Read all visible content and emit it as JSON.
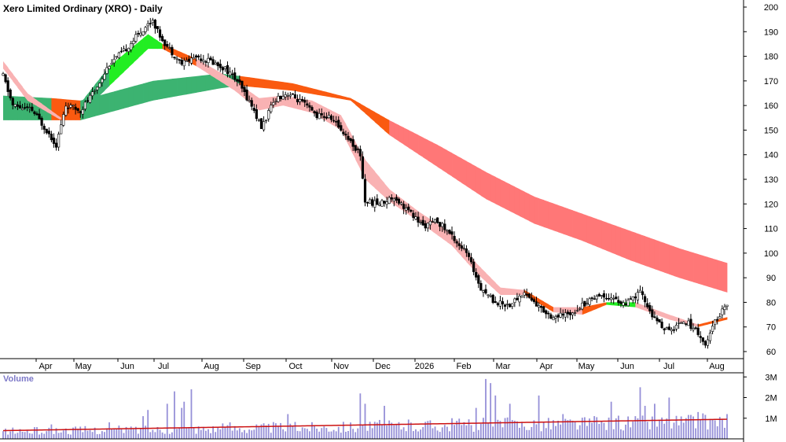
{
  "chart_data": {
    "type": "candlestick",
    "title": "Xero Limited Ordinary (XRO) - Daily",
    "price_axis": {
      "ticks": [
        60,
        70,
        80,
        90,
        100,
        110,
        120,
        130,
        140,
        150,
        160,
        170,
        180,
        190,
        200
      ],
      "ylim": [
        56,
        203
      ]
    },
    "x_labels": [
      "Apr",
      "May",
      "Jun",
      "Jul",
      "Aug",
      "Sep",
      "Oct",
      "Nov",
      "Dec",
      "2026",
      "Feb",
      "Mar",
      "Apr",
      "May",
      "Jun",
      "Jul",
      "Aug"
    ],
    "price_anchors": [
      {
        "d": 0,
        "c": 172
      },
      {
        "d": 4,
        "c": 160
      },
      {
        "d": 12,
        "c": 158
      },
      {
        "d": 18,
        "c": 150
      },
      {
        "d": 22,
        "c": 144
      },
      {
        "d": 26,
        "c": 160
      },
      {
        "d": 32,
        "c": 158
      },
      {
        "d": 38,
        "c": 166
      },
      {
        "d": 44,
        "c": 177
      },
      {
        "d": 50,
        "c": 182
      },
      {
        "d": 56,
        "c": 189
      },
      {
        "d": 62,
        "c": 195
      },
      {
        "d": 64,
        "c": 190
      },
      {
        "d": 68,
        "c": 184
      },
      {
        "d": 74,
        "c": 177
      },
      {
        "d": 80,
        "c": 180
      },
      {
        "d": 86,
        "c": 178
      },
      {
        "d": 92,
        "c": 175
      },
      {
        "d": 97,
        "c": 170
      },
      {
        "d": 103,
        "c": 160
      },
      {
        "d": 107,
        "c": 151
      },
      {
        "d": 113,
        "c": 163
      },
      {
        "d": 118,
        "c": 165
      },
      {
        "d": 124,
        "c": 161
      },
      {
        "d": 130,
        "c": 156
      },
      {
        "d": 136,
        "c": 155
      },
      {
        "d": 142,
        "c": 148
      },
      {
        "d": 148,
        "c": 140
      },
      {
        "d": 150,
        "c": 121
      },
      {
        "d": 156,
        "c": 120
      },
      {
        "d": 162,
        "c": 123
      },
      {
        "d": 168,
        "c": 117
      },
      {
        "d": 174,
        "c": 111
      },
      {
        "d": 180,
        "c": 113
      },
      {
        "d": 186,
        "c": 107
      },
      {
        "d": 192,
        "c": 100
      },
      {
        "d": 198,
        "c": 86
      },
      {
        "d": 204,
        "c": 80
      },
      {
        "d": 210,
        "c": 79
      },
      {
        "d": 216,
        "c": 84
      },
      {
        "d": 222,
        "c": 78
      },
      {
        "d": 228,
        "c": 74
      },
      {
        "d": 234,
        "c": 75
      },
      {
        "d": 240,
        "c": 79
      },
      {
        "d": 246,
        "c": 83
      },
      {
        "d": 252,
        "c": 82
      },
      {
        "d": 258,
        "c": 79
      },
      {
        "d": 264,
        "c": 84
      },
      {
        "d": 270,
        "c": 73
      },
      {
        "d": 276,
        "c": 68
      },
      {
        "d": 282,
        "c": 73
      },
      {
        "d": 288,
        "c": 68
      },
      {
        "d": 291,
        "c": 62
      },
      {
        "d": 295,
        "c": 72
      },
      {
        "d": 300,
        "c": 80
      }
    ],
    "short_ribbon": [
      {
        "d": 0,
        "upper": 178,
        "lower": 175,
        "color": "pink"
      },
      {
        "d": 10,
        "upper": 165,
        "lower": 162,
        "color": "pink"
      },
      {
        "d": 24,
        "upper": 155,
        "lower": 154,
        "color": "orange"
      },
      {
        "d": 32,
        "upper": 161,
        "lower": 156,
        "color": "green"
      },
      {
        "d": 44,
        "upper": 176,
        "lower": 168,
        "color": "lime"
      },
      {
        "d": 60,
        "upper": 189,
        "lower": 183,
        "color": "lime"
      },
      {
        "d": 66,
        "upper": 185,
        "lower": 183,
        "color": "orange"
      },
      {
        "d": 80,
        "upper": 179,
        "lower": 176,
        "color": "pink"
      },
      {
        "d": 96,
        "upper": 170,
        "lower": 166,
        "color": "pink"
      },
      {
        "d": 106,
        "upper": 163,
        "lower": 158,
        "color": "pink"
      },
      {
        "d": 116,
        "upper": 164,
        "lower": 160,
        "color": "pink"
      },
      {
        "d": 128,
        "upper": 162,
        "lower": 157,
        "color": "pink"
      },
      {
        "d": 140,
        "upper": 156,
        "lower": 150,
        "color": "pink"
      },
      {
        "d": 150,
        "upper": 138,
        "lower": 130,
        "color": "pink"
      },
      {
        "d": 160,
        "upper": 126,
        "lower": 121,
        "color": "pink"
      },
      {
        "d": 172,
        "upper": 117,
        "lower": 113,
        "color": "pink"
      },
      {
        "d": 186,
        "upper": 108,
        "lower": 103,
        "color": "pink"
      },
      {
        "d": 196,
        "upper": 96,
        "lower": 92,
        "color": "pink"
      },
      {
        "d": 206,
        "upper": 86,
        "lower": 83,
        "color": "pink"
      },
      {
        "d": 216,
        "upper": 85,
        "lower": 83,
        "color": "orange"
      },
      {
        "d": 228,
        "upper": 78,
        "lower": 76,
        "color": "pink"
      },
      {
        "d": 240,
        "upper": 78,
        "lower": 75,
        "color": "orange"
      },
      {
        "d": 250,
        "upper": 80,
        "lower": 79,
        "color": "lime"
      },
      {
        "d": 262,
        "upper": 80,
        "lower": 78,
        "color": "pink"
      },
      {
        "d": 276,
        "upper": 75,
        "lower": 73,
        "color": "pink"
      },
      {
        "d": 288,
        "upper": 71,
        "lower": 70,
        "color": "orange"
      },
      {
        "d": 300,
        "upper": 74,
        "lower": 73,
        "color": "lime"
      }
    ],
    "long_ribbon": [
      {
        "d": 0,
        "upper": 164,
        "lower": 154,
        "color": "green"
      },
      {
        "d": 20,
        "upper": 163,
        "lower": 154,
        "color": "orange"
      },
      {
        "d": 32,
        "upper": 162,
        "lower": 154,
        "color": "green"
      },
      {
        "d": 62,
        "upper": 170,
        "lower": 162,
        "color": "green"
      },
      {
        "d": 90,
        "upper": 173,
        "lower": 167,
        "color": "green"
      },
      {
        "d": 98,
        "upper": 172,
        "lower": 168,
        "color": "orange"
      },
      {
        "d": 120,
        "upper": 169,
        "lower": 166,
        "color": "orange"
      },
      {
        "d": 144,
        "upper": 163,
        "lower": 162,
        "color": "orange"
      },
      {
        "d": 160,
        "upper": 154,
        "lower": 148,
        "color": "red"
      },
      {
        "d": 180,
        "upper": 144,
        "lower": 135,
        "color": "red"
      },
      {
        "d": 200,
        "upper": 133,
        "lower": 122,
        "color": "red"
      },
      {
        "d": 220,
        "upper": 123,
        "lower": 112,
        "color": "red"
      },
      {
        "d": 240,
        "upper": 116,
        "lower": 105,
        "color": "red"
      },
      {
        "d": 260,
        "upper": 109,
        "lower": 97,
        "color": "red"
      },
      {
        "d": 280,
        "upper": 102,
        "lower": 90,
        "color": "red"
      },
      {
        "d": 300,
        "upper": 96,
        "lower": 84,
        "color": "red"
      }
    ],
    "volume": {
      "label": "Volume",
      "ticks": [
        "3M",
        "2M",
        "1M"
      ],
      "tick_values": [
        3000000,
        2000000,
        1000000
      ],
      "ylim": [
        0,
        3200000
      ],
      "spikes": [
        {
          "d": 20,
          "v": 700000
        },
        {
          "d": 44,
          "v": 800000
        },
        {
          "d": 58,
          "v": 1100000
        },
        {
          "d": 60,
          "v": 1400000
        },
        {
          "d": 68,
          "v": 1700000
        },
        {
          "d": 71,
          "v": 2300000
        },
        {
          "d": 74,
          "v": 1500000
        },
        {
          "d": 75,
          "v": 1800000
        },
        {
          "d": 78,
          "v": 2400000
        },
        {
          "d": 94,
          "v": 800000
        },
        {
          "d": 118,
          "v": 1200000
        },
        {
          "d": 148,
          "v": 2200000
        },
        {
          "d": 150,
          "v": 1700000
        },
        {
          "d": 158,
          "v": 1600000
        },
        {
          "d": 186,
          "v": 1000000
        },
        {
          "d": 196,
          "v": 1500000
        },
        {
          "d": 200,
          "v": 2900000
        },
        {
          "d": 202,
          "v": 2700000
        },
        {
          "d": 204,
          "v": 2100000
        },
        {
          "d": 210,
          "v": 1700000
        },
        {
          "d": 222,
          "v": 2100000
        },
        {
          "d": 232,
          "v": 1200000
        },
        {
          "d": 252,
          "v": 1800000
        },
        {
          "d": 264,
          "v": 2500000
        },
        {
          "d": 266,
          "v": 1600000
        },
        {
          "d": 270,
          "v": 1700000
        },
        {
          "d": 276,
          "v": 2000000
        },
        {
          "d": 288,
          "v": 1300000
        },
        {
          "d": 300,
          "v": 1200000
        }
      ],
      "average_start": 400000,
      "average_end": 950000
    },
    "colors": {
      "candle": "#000000",
      "pink": "#f9b2b3",
      "orange": "#fa5a10",
      "green": "#3cb371",
      "lime": "#22ee22",
      "red": "#ff7777",
      "volume_bar": "#9690d8",
      "volume_avg": "#cc1111",
      "grid": "#c0c0c0"
    }
  }
}
